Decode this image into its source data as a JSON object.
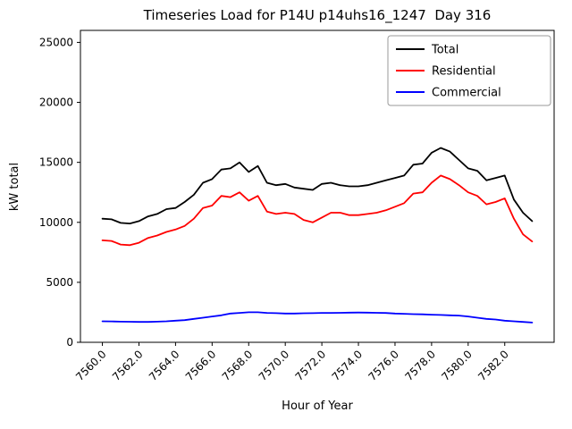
{
  "chart_data": {
    "type": "line",
    "title": "Timeseries Load for P14U p14uhs16_1247  Day 316",
    "xlabel": "Hour of Year",
    "ylabel": "kW total",
    "grid": false,
    "legend_position": "upper right",
    "xlim": [
      7558.8,
      7584.7
    ],
    "ylim": [
      0,
      26000
    ],
    "xticks": [
      7560,
      7562,
      7564,
      7566,
      7568,
      7570,
      7572,
      7574,
      7576,
      7578,
      7580,
      7582
    ],
    "xtick_labels": [
      "7560.0",
      "7562.0",
      "7564.0",
      "7566.0",
      "7568.0",
      "7570.0",
      "7572.0",
      "7574.0",
      "7576.0",
      "7578.0",
      "7580.0",
      "7582.0"
    ],
    "yticks": [
      0,
      5000,
      10000,
      15000,
      20000,
      25000
    ],
    "ytick_labels": [
      "0",
      "5000",
      "10000",
      "15000",
      "20000",
      "25000"
    ],
    "x": [
      7560.0,
      7560.5,
      7561.0,
      7561.5,
      7562.0,
      7562.5,
      7563.0,
      7563.5,
      7564.0,
      7564.5,
      7565.0,
      7565.5,
      7566.0,
      7566.5,
      7567.0,
      7567.5,
      7568.0,
      7568.5,
      7569.0,
      7569.5,
      7570.0,
      7570.5,
      7571.0,
      7571.5,
      7572.0,
      7572.5,
      7573.0,
      7573.5,
      7574.0,
      7574.5,
      7575.0,
      7575.5,
      7576.0,
      7576.5,
      7577.0,
      7577.5,
      7578.0,
      7578.5,
      7579.0,
      7579.5,
      7580.0,
      7580.5,
      7581.0,
      7581.5,
      7582.0,
      7582.5,
      7583.0,
      7583.5
    ],
    "series": [
      {
        "name": "Total",
        "color": "#000000",
        "values": [
          10300,
          10250,
          9950,
          9900,
          10100,
          10500,
          10700,
          11100,
          11200,
          11700,
          12300,
          13300,
          13600,
          14400,
          14500,
          15000,
          14200,
          14700,
          13300,
          13100,
          13200,
          12900,
          12800,
          12700,
          13200,
          13300,
          13100,
          13000,
          13000,
          13100,
          13300,
          13500,
          13700,
          13900,
          14800,
          14900,
          15800,
          16200,
          15900,
          15200,
          14500,
          14300,
          13500,
          13700,
          13900,
          11900,
          10800,
          10100
        ]
      },
      {
        "name": "Residential",
        "color": "#ff0000",
        "values": [
          8500,
          8450,
          8150,
          8100,
          8300,
          8700,
          8900,
          9200,
          9400,
          9700,
          10300,
          11200,
          11400,
          12200,
          12100,
          12500,
          11800,
          12200,
          10900,
          10700,
          10800,
          10700,
          10200,
          10000,
          10400,
          10800,
          10800,
          10600,
          10600,
          10700,
          10800,
          11000,
          11300,
          11600,
          12400,
          12500,
          13300,
          13900,
          13600,
          13100,
          12500,
          12200,
          11500,
          11700,
          12000,
          10300,
          9000,
          8400
        ]
      },
      {
        "name": "Commercial",
        "color": "#0000ff",
        "values": [
          1750,
          1740,
          1720,
          1710,
          1700,
          1700,
          1720,
          1750,
          1800,
          1850,
          1950,
          2050,
          2150,
          2250,
          2400,
          2450,
          2500,
          2500,
          2450,
          2430,
          2400,
          2400,
          2420,
          2430,
          2450,
          2450,
          2460,
          2470,
          2480,
          2470,
          2460,
          2440,
          2400,
          2380,
          2350,
          2330,
          2300,
          2280,
          2250,
          2230,
          2150,
          2050,
          1950,
          1900,
          1800,
          1750,
          1700,
          1650
        ]
      }
    ]
  }
}
